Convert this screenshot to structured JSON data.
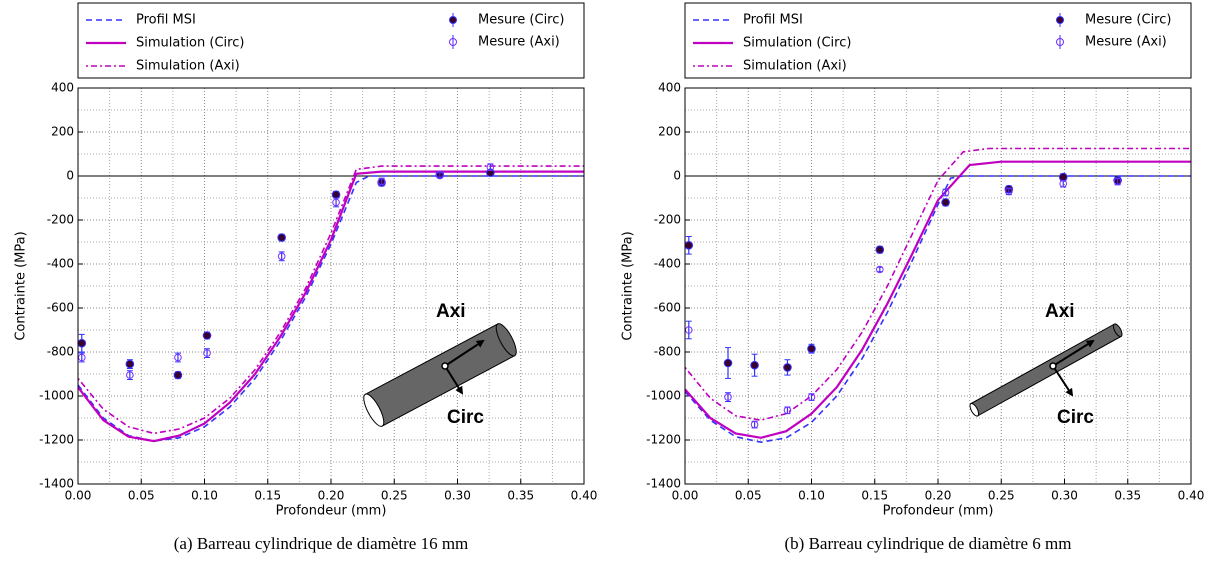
{
  "chart_data": [
    {
      "type": "line",
      "xlabel": "Profondeur (mm)",
      "ylabel": "Contrainte (MPa)",
      "caption": "(a) Barreau cylindrique de diamètre 16 mm",
      "annotations": [
        "Axi",
        "Circ"
      ],
      "xlim": [
        0,
        0.4
      ],
      "ylim": [
        -1400,
        400
      ],
      "xticks": [
        {
          "value": 0,
          "label": "0.00"
        },
        {
          "value": 0.05,
          "label": "0.05"
        },
        {
          "value": 0.1,
          "label": "0.10"
        },
        {
          "value": 0.15,
          "label": "0.15"
        },
        {
          "value": 0.2,
          "label": "0.20"
        },
        {
          "value": 0.25,
          "label": "0.25"
        },
        {
          "value": 0.3,
          "label": "0.30"
        },
        {
          "value": 0.35,
          "label": "0.35"
        },
        {
          "value": 0.4,
          "label": "0.40"
        }
      ],
      "yticks": [
        -1400,
        -1200,
        -1000,
        -800,
        -600,
        -400,
        -200,
        0,
        200,
        400
      ],
      "grid": true,
      "series": [
        {
          "name": "Profil MSI",
          "color": "#3333ff",
          "style": "dashed",
          "x": [
            0,
            0.02,
            0.04,
            0.06,
            0.08,
            0.1,
            0.12,
            0.14,
            0.16,
            0.18,
            0.2,
            0.22,
            0.23,
            0.4
          ],
          "values": [
            -950,
            -1100,
            -1180,
            -1205,
            -1190,
            -1140,
            -1050,
            -920,
            -750,
            -550,
            -310,
            -30,
            0,
            0
          ]
        },
        {
          "name": "Simulation (Circ)",
          "color": "#c000c0",
          "style": "solid",
          "x": [
            0,
            0.02,
            0.04,
            0.06,
            0.08,
            0.1,
            0.12,
            0.14,
            0.16,
            0.18,
            0.2,
            0.22,
            0.24,
            0.4
          ],
          "values": [
            -960,
            -1110,
            -1185,
            -1205,
            -1180,
            -1125,
            -1030,
            -900,
            -730,
            -530,
            -290,
            10,
            20,
            20
          ]
        },
        {
          "name": "Simulation (Axi)",
          "color": "#c000c0",
          "style": "dashdot",
          "x": [
            0,
            0.02,
            0.04,
            0.06,
            0.08,
            0.1,
            0.12,
            0.14,
            0.16,
            0.18,
            0.2,
            0.22,
            0.24,
            0.4
          ],
          "values": [
            -920,
            -1060,
            -1140,
            -1170,
            -1150,
            -1100,
            -1010,
            -880,
            -710,
            -510,
            -260,
            30,
            45,
            45
          ]
        },
        {
          "name": "Mesure (Circ)",
          "color": "#3a0030",
          "error_color": "#3333ff",
          "marker": "filled",
          "x": [
            0.003,
            0.041,
            0.079,
            0.102,
            0.161,
            0.204,
            0.24,
            0.286,
            0.326
          ],
          "values": [
            -760,
            -855,
            -905,
            -725,
            -280,
            -85,
            -30,
            5,
            15
          ],
          "errors": [
            40,
            20,
            15,
            15,
            15,
            15,
            15,
            10,
            10
          ]
        },
        {
          "name": "Mesure (Axi)",
          "color": "#7a2cff",
          "error_color": "#3333ff",
          "marker": "open",
          "x": [
            0.003,
            0.041,
            0.079,
            0.102,
            0.161,
            0.204,
            0.24,
            0.286,
            0.326
          ],
          "values": [
            -825,
            -905,
            -825,
            -805,
            -365,
            -120,
            -25,
            5,
            40
          ],
          "errors": [
            20,
            20,
            20,
            20,
            20,
            20,
            15,
            10,
            15
          ]
        }
      ]
    },
    {
      "type": "line",
      "xlabel": "Profondeur (mm)",
      "ylabel": "Contrainte (MPa)",
      "caption": "(b) Barreau cylindrique de diamètre 6 mm",
      "annotations": [
        "Axi",
        "Circ"
      ],
      "xlim": [
        0,
        0.4
      ],
      "ylim": [
        -1400,
        400
      ],
      "xticks": [
        {
          "value": 0,
          "label": "0.00"
        },
        {
          "value": 0.05,
          "label": "0.05"
        },
        {
          "value": 0.1,
          "label": "0.10"
        },
        {
          "value": 0.15,
          "label": "0.15"
        },
        {
          "value": 0.2,
          "label": "0.20"
        },
        {
          "value": 0.25,
          "label": "0.25"
        },
        {
          "value": 0.3,
          "label": "0.30"
        },
        {
          "value": 0.35,
          "label": "0.35"
        },
        {
          "value": 0.4,
          "label": "0.40"
        }
      ],
      "yticks": [
        -1400,
        -1200,
        -1000,
        -800,
        -600,
        -400,
        -200,
        0,
        200,
        400
      ],
      "grid": true,
      "series": [
        {
          "name": "Profil MSI",
          "color": "#3333ff",
          "style": "dashed",
          "x": [
            0,
            0.02,
            0.04,
            0.06,
            0.08,
            0.1,
            0.12,
            0.14,
            0.16,
            0.18,
            0.2,
            0.21,
            0.22,
            0.4
          ],
          "values": [
            -980,
            -1110,
            -1185,
            -1210,
            -1190,
            -1120,
            -1000,
            -830,
            -620,
            -380,
            -130,
            -10,
            0,
            0
          ]
        },
        {
          "name": "Simulation (Circ)",
          "color": "#c000c0",
          "style": "solid",
          "x": [
            0,
            0.02,
            0.04,
            0.06,
            0.08,
            0.1,
            0.12,
            0.14,
            0.16,
            0.18,
            0.2,
            0.225,
            0.25,
            0.4
          ],
          "values": [
            -970,
            -1100,
            -1170,
            -1190,
            -1160,
            -1080,
            -960,
            -790,
            -580,
            -350,
            -110,
            50,
            65,
            65
          ]
        },
        {
          "name": "Simulation (Axi)",
          "color": "#c000c0",
          "style": "dashdot",
          "x": [
            0,
            0.02,
            0.04,
            0.06,
            0.08,
            0.1,
            0.12,
            0.14,
            0.16,
            0.18,
            0.2,
            0.22,
            0.24,
            0.4
          ],
          "values": [
            -870,
            -1010,
            -1090,
            -1110,
            -1080,
            -1000,
            -880,
            -710,
            -500,
            -260,
            -20,
            110,
            125,
            125
          ]
        },
        {
          "name": "Mesure (Circ)",
          "color": "#3a0030",
          "error_color": "#3333ff",
          "marker": "filled",
          "x": [
            0.003,
            0.034,
            0.055,
            0.081,
            0.1,
            0.154,
            0.206,
            0.256,
            0.299,
            0.342
          ],
          "values": [
            -315,
            -850,
            -860,
            -870,
            -785,
            -335,
            -120,
            -60,
            -5,
            -20
          ],
          "errors": [
            40,
            70,
            50,
            35,
            20,
            15,
            15,
            15,
            15,
            15
          ]
        },
        {
          "name": "Mesure (Axi)",
          "color": "#7a2cff",
          "error_color": "#3333ff",
          "marker": "open",
          "x": [
            0.003,
            0.034,
            0.055,
            0.081,
            0.1,
            0.154,
            0.206,
            0.256,
            0.299,
            0.342
          ],
          "values": [
            -700,
            -1005,
            -1130,
            -1065,
            -1005,
            -425,
            -75,
            -70,
            -35,
            -25
          ],
          "errors": [
            40,
            20,
            15,
            15,
            15,
            10,
            15,
            15,
            15,
            15
          ]
        }
      ]
    }
  ]
}
